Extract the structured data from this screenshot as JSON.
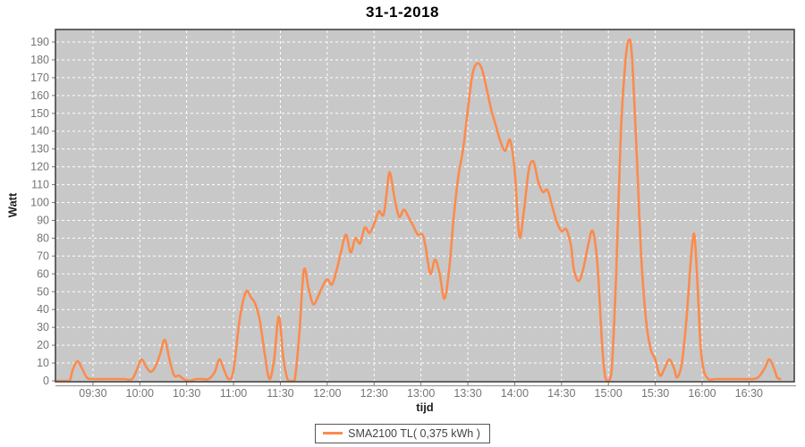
{
  "title": "31-1-2018",
  "legend": {
    "series_label": "SMA2100 TL( 0,375 kWh )"
  },
  "colors": {
    "series": "#fb8b4d",
    "plot_background": "#c8c8c8",
    "gridline": "#ffffff",
    "plot_border": "#444444",
    "tick_mark": "#777777",
    "tick_label": "#757575",
    "axis_label": "#222222",
    "axis_baseline": "#999999"
  },
  "chart_data": {
    "type": "line",
    "title": "31-1-2018",
    "xlabel": "tijd",
    "ylabel": "Watt",
    "ylim": [
      0,
      190
    ],
    "y_tick_step": 10,
    "x_tick_labels": [
      "09:30",
      "10:00",
      "10:30",
      "11:00",
      "11:30",
      "12:00",
      "12:30",
      "13:00",
      "13:30",
      "14:00",
      "14:30",
      "15:00",
      "15:30",
      "16:00",
      "16:30"
    ],
    "x_domain": [
      "09:06",
      "16:59"
    ],
    "grid": "white dashed on gray plot background",
    "legend_position": "bottom-center",
    "series": [
      {
        "name": "SMA2100 TL( 0,375 kWh )",
        "color": "#fb8b4d",
        "points": [
          [
            "09:07",
            0
          ],
          [
            "09:11",
            0
          ],
          [
            "09:15",
            0
          ],
          [
            "09:17",
            6
          ],
          [
            "09:20",
            11
          ],
          [
            "09:23",
            7
          ],
          [
            "09:26",
            2
          ],
          [
            "09:29",
            1
          ],
          [
            "09:35",
            1
          ],
          [
            "09:40",
            1
          ],
          [
            "09:45",
            1
          ],
          [
            "09:50",
            1
          ],
          [
            "09:55",
            1
          ],
          [
            "09:58",
            6
          ],
          [
            "10:01",
            12
          ],
          [
            "10:04",
            8
          ],
          [
            "10:07",
            5
          ],
          [
            "10:10",
            8
          ],
          [
            "10:13",
            15
          ],
          [
            "10:16",
            23
          ],
          [
            "10:19",
            12
          ],
          [
            "10:22",
            3
          ],
          [
            "10:25",
            3
          ],
          [
            "10:28",
            1
          ],
          [
            "10:32",
            0
          ],
          [
            "10:36",
            1
          ],
          [
            "10:40",
            1
          ],
          [
            "10:44",
            1
          ],
          [
            "10:48",
            5
          ],
          [
            "10:51",
            12
          ],
          [
            "10:54",
            6
          ],
          [
            "10:57",
            1
          ],
          [
            "11:00",
            6
          ],
          [
            "11:04",
            35
          ],
          [
            "11:08",
            50
          ],
          [
            "11:11",
            47
          ],
          [
            "11:14",
            43
          ],
          [
            "11:17",
            33
          ],
          [
            "11:20",
            15
          ],
          [
            "11:23",
            1
          ],
          [
            "11:26",
            12
          ],
          [
            "11:29",
            36
          ],
          [
            "11:32",
            12
          ],
          [
            "11:35",
            0
          ],
          [
            "11:39",
            0
          ],
          [
            "11:42",
            25
          ],
          [
            "11:45",
            62
          ],
          [
            "11:48",
            52
          ],
          [
            "11:51",
            43
          ],
          [
            "11:54",
            47
          ],
          [
            "11:57",
            53
          ],
          [
            "12:00",
            57
          ],
          [
            "12:03",
            54
          ],
          [
            "12:06",
            62
          ],
          [
            "12:09",
            73
          ],
          [
            "12:12",
            82
          ],
          [
            "12:15",
            72
          ],
          [
            "12:18",
            80
          ],
          [
            "12:21",
            77
          ],
          [
            "12:24",
            86
          ],
          [
            "12:27",
            83
          ],
          [
            "12:30",
            88
          ],
          [
            "12:33",
            95
          ],
          [
            "12:36",
            93
          ],
          [
            "12:38",
            105
          ],
          [
            "12:40",
            117
          ],
          [
            "12:43",
            103
          ],
          [
            "12:46",
            92
          ],
          [
            "12:49",
            96
          ],
          [
            "12:52",
            92
          ],
          [
            "12:55",
            87
          ],
          [
            "12:58",
            82
          ],
          [
            "13:01",
            82
          ],
          [
            "13:03",
            75
          ],
          [
            "13:06",
            60
          ],
          [
            "13:09",
            68
          ],
          [
            "13:12",
            60
          ],
          [
            "13:15",
            46
          ],
          [
            "13:18",
            62
          ],
          [
            "13:21",
            92
          ],
          [
            "13:24",
            115
          ],
          [
            "13:27",
            130
          ],
          [
            "13:30",
            152
          ],
          [
            "13:33",
            172
          ],
          [
            "13:36",
            178
          ],
          [
            "13:39",
            175
          ],
          [
            "13:42",
            164
          ],
          [
            "13:45",
            152
          ],
          [
            "13:48",
            143
          ],
          [
            "13:51",
            134
          ],
          [
            "13:54",
            129
          ],
          [
            "13:57",
            135
          ],
          [
            "14:00",
            118
          ],
          [
            "14:03",
            81
          ],
          [
            "14:06",
            96
          ],
          [
            "14:09",
            118
          ],
          [
            "14:12",
            123
          ],
          [
            "14:15",
            112
          ],
          [
            "14:18",
            106
          ],
          [
            "14:21",
            107
          ],
          [
            "14:24",
            98
          ],
          [
            "14:27",
            89
          ],
          [
            "14:30",
            84
          ],
          [
            "14:33",
            85
          ],
          [
            "14:36",
            76
          ],
          [
            "14:38",
            62
          ],
          [
            "14:41",
            56
          ],
          [
            "14:44",
            63
          ],
          [
            "14:47",
            76
          ],
          [
            "14:50",
            84
          ],
          [
            "14:53",
            65
          ],
          [
            "14:56",
            20
          ],
          [
            "14:58",
            2
          ],
          [
            "15:00",
            0
          ],
          [
            "15:02",
            5
          ],
          [
            "15:05",
            60
          ],
          [
            "15:08",
            140
          ],
          [
            "15:11",
            180
          ],
          [
            "15:13",
            191
          ],
          [
            "15:15",
            183
          ],
          [
            "15:18",
            130
          ],
          [
            "15:21",
            70
          ],
          [
            "15:24",
            35
          ],
          [
            "15:27",
            18
          ],
          [
            "15:30",
            12
          ],
          [
            "15:33",
            3
          ],
          [
            "15:36",
            7
          ],
          [
            "15:39",
            12
          ],
          [
            "15:42",
            7
          ],
          [
            "15:44",
            2
          ],
          [
            "15:47",
            10
          ],
          [
            "15:50",
            35
          ],
          [
            "15:53",
            70
          ],
          [
            "15:55",
            82
          ],
          [
            "15:57",
            55
          ],
          [
            "15:59",
            20
          ],
          [
            "16:01",
            6
          ],
          [
            "16:04",
            1
          ],
          [
            "16:08",
            1
          ],
          [
            "16:12",
            1
          ],
          [
            "16:16",
            1
          ],
          [
            "16:20",
            1
          ],
          [
            "16:24",
            1
          ],
          [
            "16:28",
            1
          ],
          [
            "16:32",
            1
          ],
          [
            "16:36",
            2
          ],
          [
            "16:40",
            7
          ],
          [
            "16:43",
            12
          ],
          [
            "16:46",
            7
          ],
          [
            "16:48",
            2
          ],
          [
            "16:50",
            1
          ]
        ]
      }
    ]
  }
}
